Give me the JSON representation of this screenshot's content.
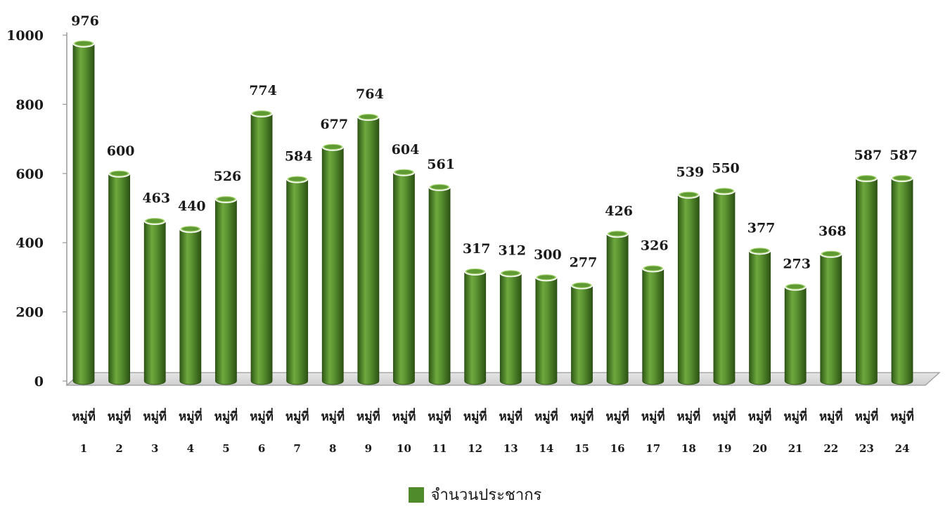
{
  "chart_data": {
    "type": "bar",
    "style": "3d-cylinder",
    "categories": [
      {
        "line1": "หมู่ที่",
        "line2": "1"
      },
      {
        "line1": "หมู่ที่",
        "line2": "2"
      },
      {
        "line1": "หมู่ที่",
        "line2": "3"
      },
      {
        "line1": "หมู่ที่",
        "line2": "4"
      },
      {
        "line1": "หมู่ที่",
        "line2": "5"
      },
      {
        "line1": "หมู่ที่",
        "line2": "6"
      },
      {
        "line1": "หมู่ที่",
        "line2": "7"
      },
      {
        "line1": "หมู่ที่",
        "line2": "8"
      },
      {
        "line1": "หมู่ที่",
        "line2": "9"
      },
      {
        "line1": "หมู่ที่",
        "line2": "10"
      },
      {
        "line1": "หมู่ที่",
        "line2": "11"
      },
      {
        "line1": "หมู่ที่",
        "line2": "12"
      },
      {
        "line1": "หมู่ที่",
        "line2": "13"
      },
      {
        "line1": "หมู่ที่",
        "line2": "14"
      },
      {
        "line1": "หมู่ที่",
        "line2": "15"
      },
      {
        "line1": "หมู่ที่",
        "line2": "16"
      },
      {
        "line1": "หมู่ที่",
        "line2": "17"
      },
      {
        "line1": "หมู่ที่",
        "line2": "18"
      },
      {
        "line1": "หมู่ที่",
        "line2": "19"
      },
      {
        "line1": "หมู่ที่",
        "line2": "20"
      },
      {
        "line1": "หมู่ที่",
        "line2": "21"
      },
      {
        "line1": "หมู่ที่",
        "line2": "22"
      },
      {
        "line1": "หมู่ที่",
        "line2": "23"
      },
      {
        "line1": "หมู่ที่",
        "line2": "24"
      }
    ],
    "series": [
      {
        "name": "จำนวนประชากร",
        "values": [
          976,
          600,
          463,
          440,
          526,
          774,
          584,
          677,
          764,
          604,
          561,
          317,
          312,
          300,
          277,
          426,
          326,
          539,
          550,
          377,
          273,
          368,
          587,
          587
        ],
        "color": "#4f8a2b"
      }
    ],
    "data_labels": [
      "976",
      "600",
      "463",
      "440",
      "526",
      "774",
      "584",
      "677",
      "764",
      "604",
      "561",
      "317",
      "312",
      "300",
      "277",
      "426",
      "326",
      "539",
      "550",
      "377",
      "273",
      "368",
      "587",
      "587"
    ],
    "ylim": [
      0,
      1000
    ],
    "yticks": [
      "0",
      "200",
      "400",
      "600",
      "800",
      "1000"
    ],
    "title": "",
    "xlabel": "",
    "ylabel": "",
    "grid": false,
    "legend_position": "bottom"
  },
  "legend": {
    "label": "จำนวนประชากร",
    "color": "#4f8a2b"
  }
}
